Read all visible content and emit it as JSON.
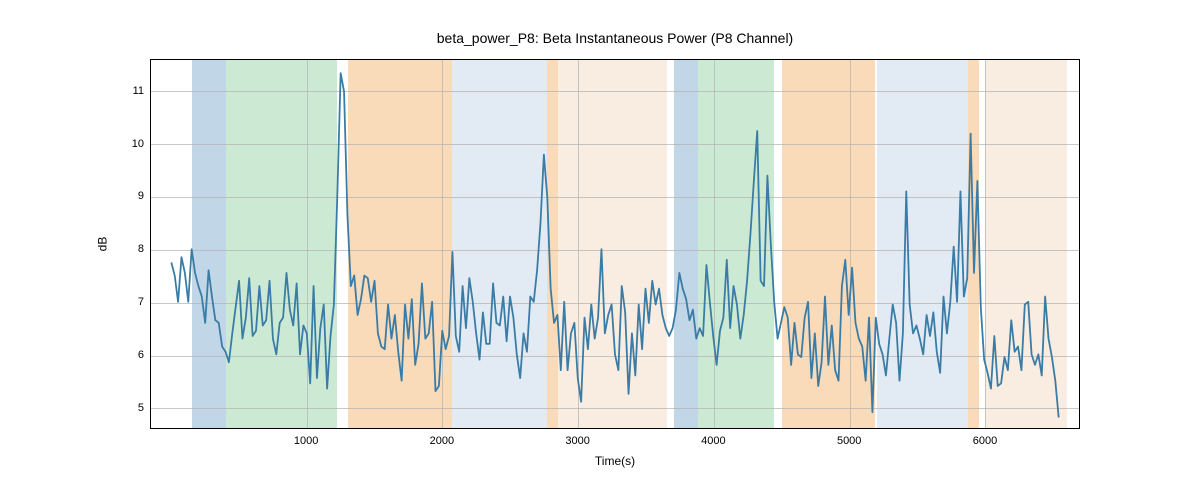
{
  "chart": {
    "title": "beta_power_P8: Beta Instantaneous Power (P8 Channel)",
    "xlabel": "Time(s)",
    "ylabel": "dB",
    "title_fontsize": 14,
    "label_fontsize": 12,
    "tick_fontsize": 11,
    "background_color": "#ffffff",
    "grid_color": "#b0b0b0",
    "line_color": "#3a7ca5",
    "line_width": 1.8,
    "xlim": [
      -150,
      6700
    ],
    "ylim": [
      4.6,
      11.6
    ],
    "xticks": [
      1000,
      2000,
      3000,
      4000,
      5000,
      6000
    ],
    "yticks": [
      5,
      6,
      7,
      8,
      9,
      10,
      11
    ],
    "regions": [
      {
        "start": 150,
        "end": 400,
        "color": "#a7c5dd",
        "opacity": 0.7
      },
      {
        "start": 400,
        "end": 1220,
        "color": "#b7e1c0",
        "opacity": 0.7
      },
      {
        "start": 1300,
        "end": 2070,
        "color": "#f5c28a",
        "opacity": 0.6
      },
      {
        "start": 2070,
        "end": 2770,
        "color": "#d6e3f0",
        "opacity": 0.7
      },
      {
        "start": 2770,
        "end": 2850,
        "color": "#f5c28a",
        "opacity": 0.6
      },
      {
        "start": 2850,
        "end": 3650,
        "color": "#f7e6d4",
        "opacity": 0.7
      },
      {
        "start": 3700,
        "end": 3880,
        "color": "#a7c5dd",
        "opacity": 0.7
      },
      {
        "start": 3880,
        "end": 4440,
        "color": "#b7e1c0",
        "opacity": 0.7
      },
      {
        "start": 4500,
        "end": 5180,
        "color": "#f5c28a",
        "opacity": 0.6
      },
      {
        "start": 5200,
        "end": 5870,
        "color": "#d6e3f0",
        "opacity": 0.7
      },
      {
        "start": 5870,
        "end": 5950,
        "color": "#f5c28a",
        "opacity": 0.6
      },
      {
        "start": 5990,
        "end": 6600,
        "color": "#f7e6d4",
        "opacity": 0.7
      }
    ],
    "data": {
      "x": [
        0,
        25,
        50,
        75,
        100,
        125,
        150,
        175,
        200,
        225,
        250,
        275,
        300,
        325,
        350,
        375,
        400,
        425,
        450,
        475,
        500,
        525,
        550,
        575,
        600,
        625,
        650,
        675,
        700,
        725,
        750,
        775,
        800,
        825,
        850,
        875,
        900,
        925,
        950,
        975,
        1000,
        1025,
        1050,
        1075,
        1100,
        1125,
        1150,
        1175,
        1200,
        1225,
        1250,
        1275,
        1300,
        1325,
        1350,
        1375,
        1400,
        1425,
        1450,
        1475,
        1500,
        1525,
        1550,
        1575,
        1600,
        1625,
        1650,
        1675,
        1700,
        1725,
        1750,
        1775,
        1800,
        1825,
        1850,
        1875,
        1900,
        1925,
        1950,
        1975,
        2000,
        2025,
        2050,
        2075,
        2100,
        2125,
        2150,
        2175,
        2200,
        2225,
        2250,
        2275,
        2300,
        2325,
        2350,
        2375,
        2400,
        2425,
        2450,
        2475,
        2500,
        2525,
        2550,
        2575,
        2600,
        2625,
        2650,
        2675,
        2700,
        2725,
        2750,
        2775,
        2800,
        2825,
        2850,
        2875,
        2900,
        2925,
        2950,
        2975,
        3000,
        3025,
        3050,
        3075,
        3100,
        3125,
        3150,
        3175,
        3200,
        3225,
        3250,
        3275,
        3300,
        3325,
        3350,
        3375,
        3400,
        3425,
        3450,
        3475,
        3500,
        3525,
        3550,
        3575,
        3600,
        3625,
        3650,
        3675,
        3700,
        3725,
        3750,
        3775,
        3800,
        3825,
        3850,
        3875,
        3900,
        3925,
        3950,
        3975,
        4000,
        4025,
        4050,
        4075,
        4100,
        4125,
        4150,
        4175,
        4200,
        4225,
        4250,
        4275,
        4300,
        4325,
        4350,
        4375,
        4400,
        4425,
        4450,
        4475,
        4500,
        4525,
        4550,
        4575,
        4600,
        4625,
        4650,
        4675,
        4700,
        4725,
        4750,
        4775,
        4800,
        4825,
        4850,
        4875,
        4900,
        4925,
        4950,
        4975,
        5000,
        5025,
        5050,
        5075,
        5100,
        5125,
        5150,
        5175,
        5200,
        5225,
        5250,
        5275,
        5300,
        5325,
        5350,
        5375,
        5400,
        5425,
        5450,
        5475,
        5500,
        5525,
        5550,
        5575,
        5600,
        5625,
        5650,
        5675,
        5700,
        5725,
        5750,
        5775,
        5800,
        5825,
        5850,
        5875,
        5900,
        5925,
        5950,
        5975,
        6000,
        6025,
        6050,
        6075,
        6100,
        6125,
        6150,
        6175,
        6200,
        6225,
        6250,
        6275,
        6300,
        6325,
        6350,
        6375,
        6400,
        6425,
        6450,
        6475,
        6500,
        6525,
        6550
      ],
      "y": [
        7.75,
        7.5,
        7.0,
        7.85,
        7.55,
        7.0,
        8.0,
        7.55,
        7.3,
        7.1,
        6.6,
        7.6,
        7.1,
        6.65,
        6.6,
        6.15,
        6.05,
        5.85,
        6.4,
        6.9,
        7.4,
        6.3,
        6.7,
        7.45,
        6.35,
        6.45,
        7.3,
        6.55,
        6.65,
        7.4,
        6.3,
        6.0,
        6.6,
        6.7,
        7.55,
        6.85,
        6.55,
        7.35,
        6.0,
        6.55,
        6.4,
        5.45,
        7.3,
        5.55,
        6.5,
        6.95,
        5.35,
        6.35,
        6.95,
        9.0,
        11.35,
        11.0,
        8.65,
        7.3,
        7.5,
        6.75,
        7.05,
        7.5,
        7.45,
        7.0,
        7.4,
        6.4,
        6.15,
        6.1,
        6.95,
        6.3,
        6.75,
        6.05,
        5.5,
        6.95,
        6.3,
        7.05,
        5.8,
        6.2,
        7.35,
        6.3,
        6.4,
        7.0,
        5.3,
        5.4,
        6.45,
        6.1,
        6.35,
        7.95,
        6.35,
        6.05,
        7.3,
        6.5,
        7.45,
        7.0,
        6.4,
        5.9,
        6.8,
        6.2,
        6.2,
        7.35,
        6.6,
        6.55,
        7.1,
        6.25,
        7.1,
        6.7,
        6.0,
        5.55,
        6.4,
        6.05,
        7.1,
        7.0,
        7.6,
        8.5,
        9.8,
        9.0,
        7.25,
        6.6,
        6.75,
        5.7,
        7.0,
        5.7,
        6.4,
        6.6,
        5.55,
        5.1,
        6.7,
        6.1,
        6.95,
        6.3,
        6.7,
        8.0,
        6.4,
        6.75,
        6.95,
        6.0,
        5.7,
        7.3,
        6.8,
        5.25,
        6.4,
        5.6,
        6.95,
        6.1,
        7.25,
        6.6,
        7.4,
        6.95,
        7.25,
        6.75,
        6.5,
        6.35,
        6.5,
        6.85,
        7.55,
        7.25,
        7.05,
        6.65,
        6.85,
        6.3,
        6.5,
        6.35,
        7.7,
        7.0,
        6.35,
        5.8,
        6.45,
        6.7,
        7.8,
        6.5,
        7.3,
        6.95,
        6.3,
        6.75,
        7.4,
        8.3,
        9.3,
        10.25,
        7.4,
        7.3,
        9.4,
        8.1,
        7.0,
        6.3,
        6.6,
        6.9,
        6.7,
        5.8,
        6.6,
        6.0,
        5.95,
        6.7,
        7.0,
        5.55,
        6.4,
        5.4,
        5.85,
        7.1,
        5.8,
        6.55,
        5.7,
        5.5,
        7.3,
        7.8,
        6.75,
        7.65,
        6.6,
        6.3,
        6.15,
        5.5,
        6.7,
        4.9,
        6.7,
        6.2,
        6.0,
        5.6,
        6.3,
        6.95,
        6.6,
        5.5,
        6.4,
        9.1,
        6.95,
        6.4,
        6.55,
        6.3,
        6.0,
        6.75,
        6.35,
        6.8,
        6.05,
        5.65,
        7.1,
        6.4,
        7.0,
        8.05,
        7.0,
        9.1,
        7.1,
        7.45,
        10.2,
        7.55,
        9.3,
        6.9,
        5.9,
        5.65,
        5.35,
        6.35,
        5.4,
        5.45,
        5.95,
        5.7,
        6.65,
        6.05,
        6.15,
        5.7,
        6.95,
        7.0,
        6.0,
        5.8,
        6.0,
        5.6,
        7.1,
        6.3,
        5.95,
        5.5,
        4.8
      ]
    }
  }
}
